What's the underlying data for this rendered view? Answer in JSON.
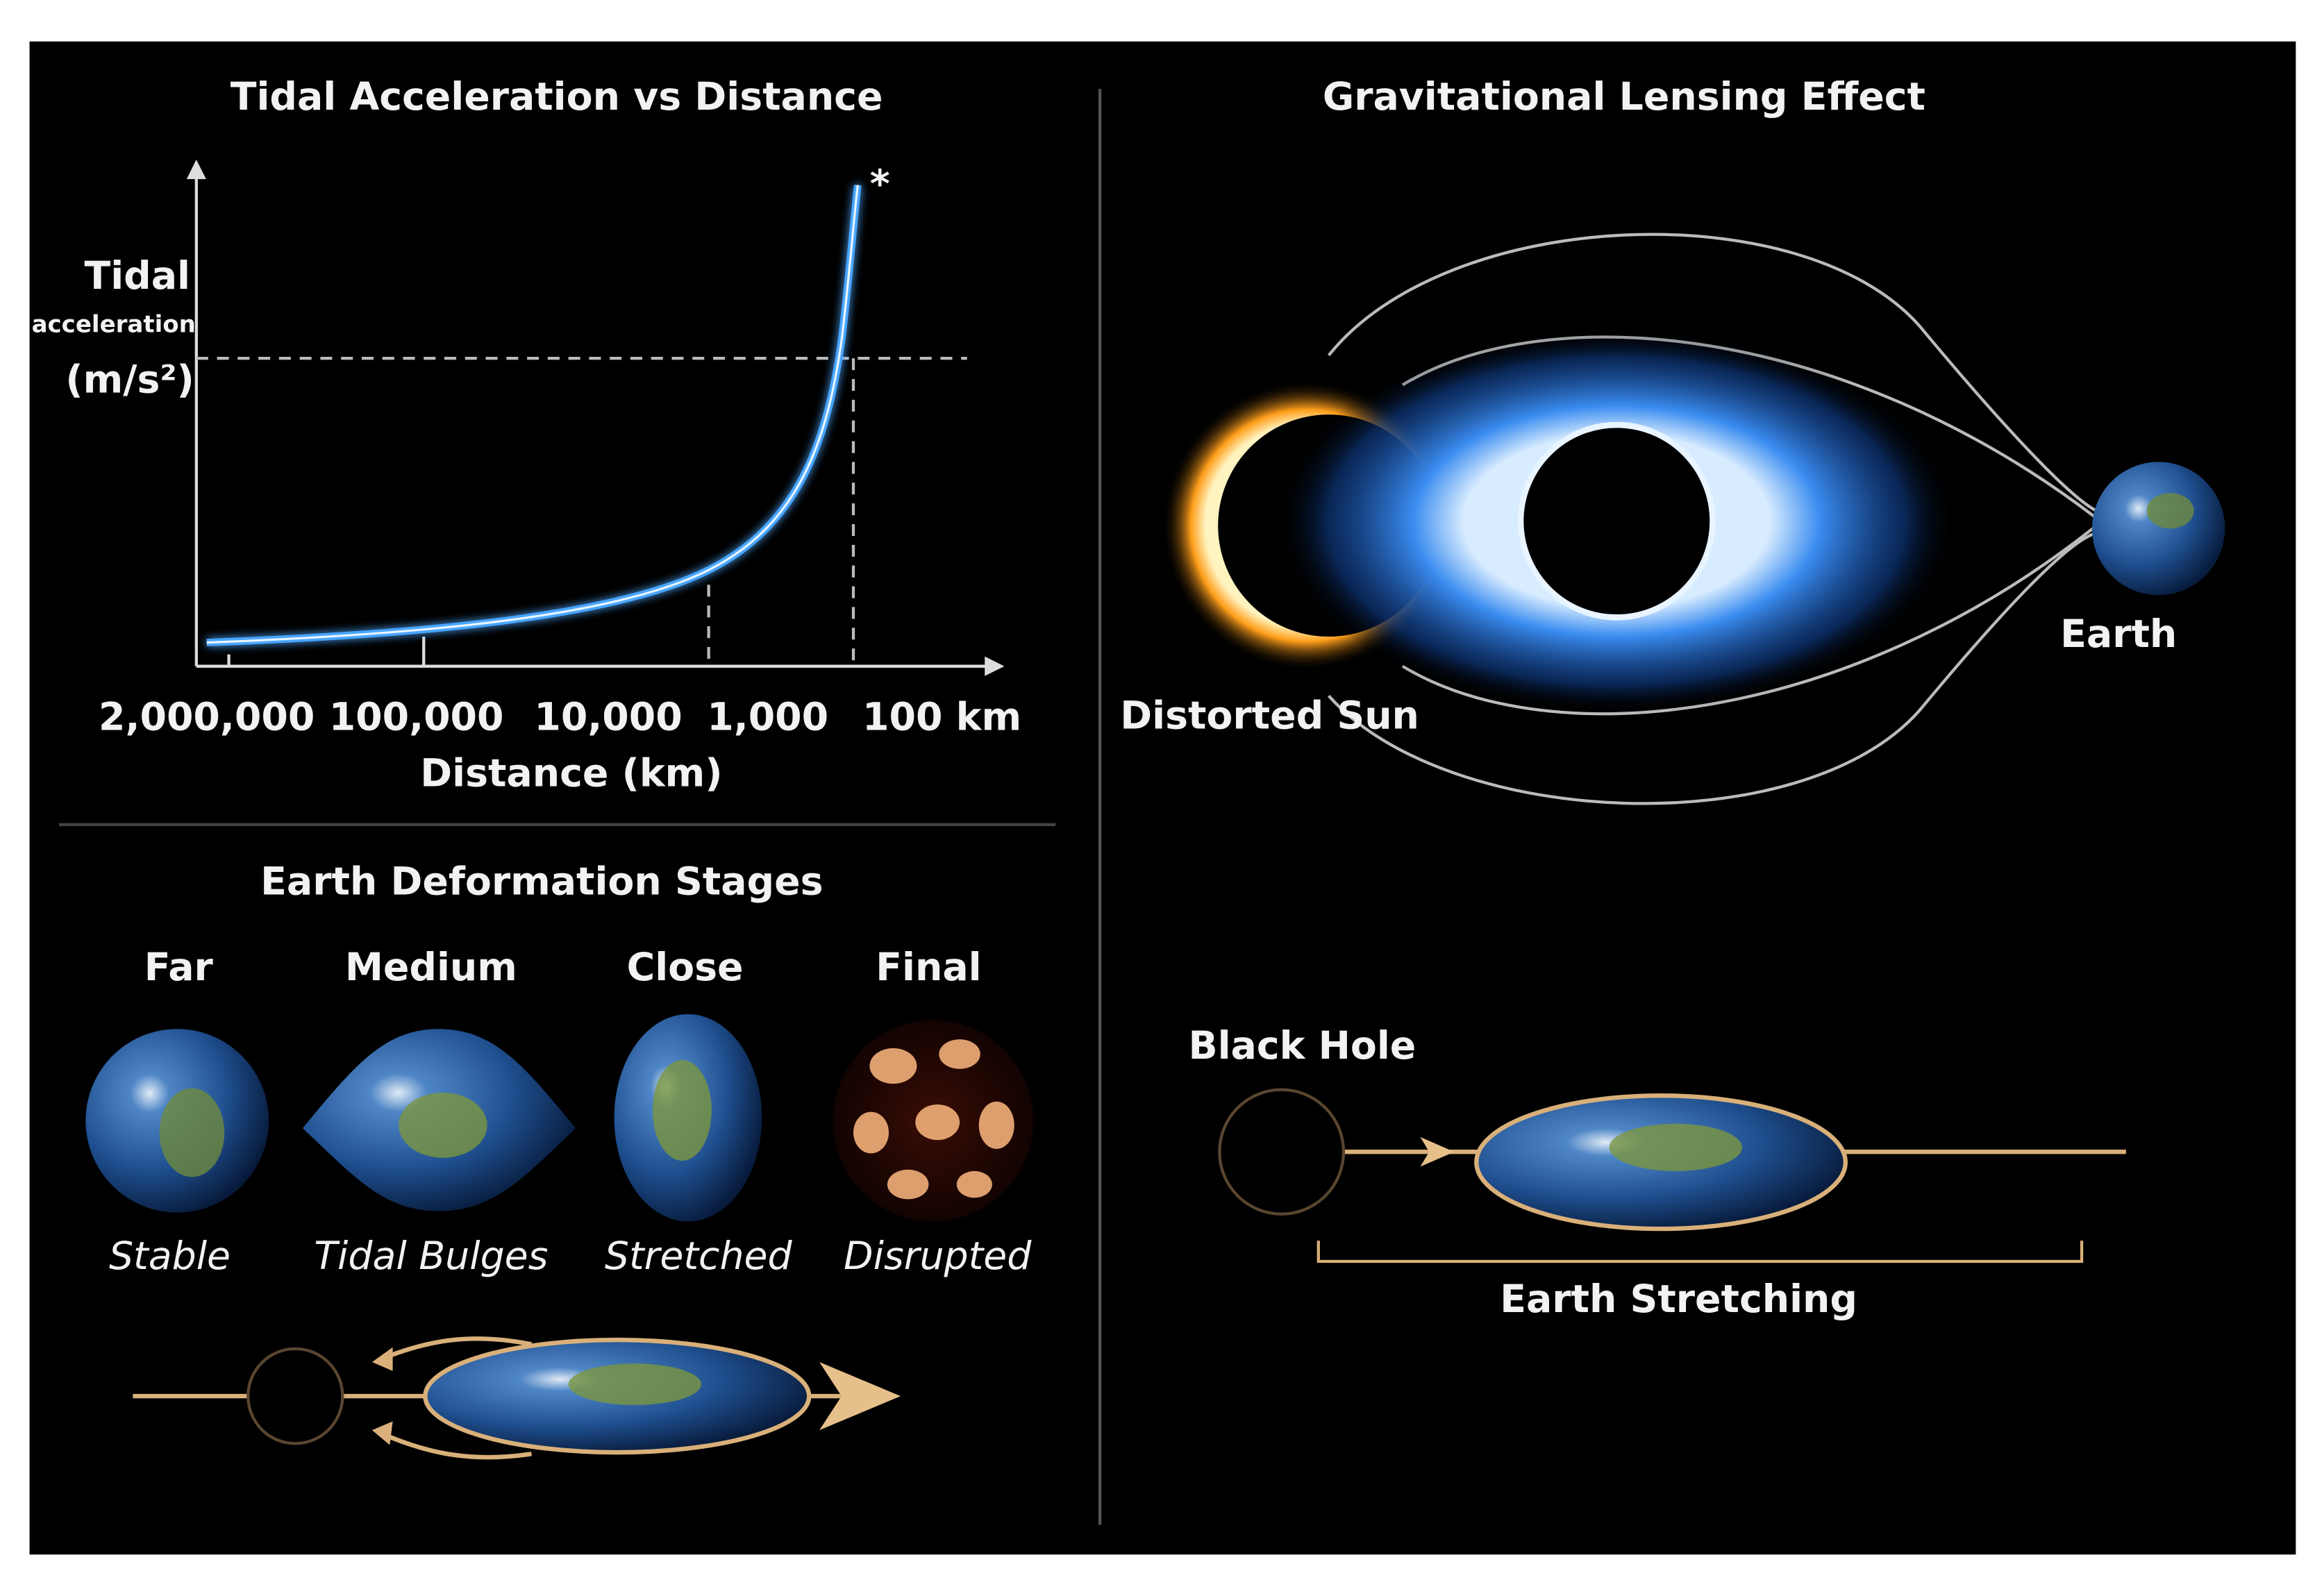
{
  "tidal_chart": {
    "title": "Tidal Acceleration vs Distance",
    "y_label": [
      "Tidal",
      "acceleration",
      "(m/s²)"
    ],
    "x_tick_labels": [
      "2,000,000",
      "100,000",
      "10,000",
      "1,000",
      "100 km"
    ],
    "x_label": "Distance (km)",
    "marker": "*"
  },
  "lensing": {
    "title": "Gravitational Lensing Effect",
    "sun_label": "Distorted Sun",
    "earth_label": "Earth"
  },
  "deformation": {
    "title": "Earth Deformation Stages",
    "stages": [
      {
        "distance": "Far",
        "state": "Stable"
      },
      {
        "distance": "Medium",
        "state": "Tidal Bulges"
      },
      {
        "distance": "Close",
        "state": "Stretched"
      },
      {
        "distance": "Final",
        "state": "Disrupted"
      }
    ]
  },
  "stretching": {
    "black_hole_label": "Black Hole",
    "caption": "Earth Stretching"
  }
}
